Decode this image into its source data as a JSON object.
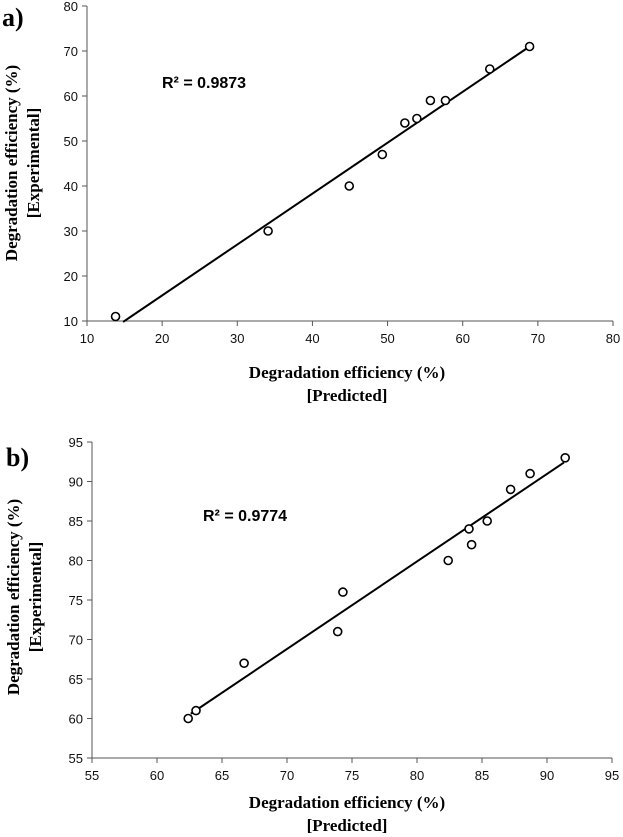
{
  "chart_data": [
    {
      "type": "scatter",
      "panel_label": "a)",
      "annotation": "R² = 0.9873",
      "xlabel": "Degradation efficiency (%)",
      "xlabel2": "[Predicted]",
      "ylabel": "Degradation efficiency (%)",
      "ylabel2": "[Experimental]",
      "xlim": [
        10,
        80
      ],
      "ylim": [
        10,
        80
      ],
      "xticks": [
        10,
        20,
        30,
        40,
        50,
        60,
        70,
        80
      ],
      "yticks": [
        10,
        20,
        30,
        40,
        50,
        60,
        70,
        80
      ],
      "points": [
        {
          "x": 13.8,
          "y": 11
        },
        {
          "x": 34.1,
          "y": 30
        },
        {
          "x": 44.9,
          "y": 40
        },
        {
          "x": 49.3,
          "y": 47
        },
        {
          "x": 52.3,
          "y": 54
        },
        {
          "x": 53.9,
          "y": 55
        },
        {
          "x": 55.7,
          "y": 59
        },
        {
          "x": 57.7,
          "y": 59
        },
        {
          "x": 63.6,
          "y": 66
        },
        {
          "x": 68.9,
          "y": 71
        }
      ],
      "trendline": [
        {
          "x": 14.8,
          "y": 9.8
        },
        {
          "x": 68.9,
          "y": 71
        }
      ],
      "grid": false
    },
    {
      "type": "scatter",
      "panel_label": "b)",
      "annotation": "R² = 0.9774",
      "xlabel": "Degradation efficiency (%)",
      "xlabel2": "[Predicted]",
      "ylabel": "Degradation efficiency (%)",
      "ylabel2": "[Experimental]",
      "xlim": [
        55,
        95
      ],
      "ylim": [
        55,
        95
      ],
      "xticks": [
        55,
        60,
        65,
        70,
        75,
        80,
        85,
        90,
        95
      ],
      "yticks": [
        55,
        60,
        65,
        70,
        75,
        80,
        85,
        90,
        95
      ],
      "points": [
        {
          "x": 62.4,
          "y": 60
        },
        {
          "x": 63.0,
          "y": 61
        },
        {
          "x": 66.7,
          "y": 67
        },
        {
          "x": 73.9,
          "y": 71
        },
        {
          "x": 74.3,
          "y": 76
        },
        {
          "x": 82.4,
          "y": 80
        },
        {
          "x": 84.0,
          "y": 84
        },
        {
          "x": 84.2,
          "y": 82
        },
        {
          "x": 85.4,
          "y": 85
        },
        {
          "x": 87.2,
          "y": 89
        },
        {
          "x": 88.7,
          "y": 91
        },
        {
          "x": 91.4,
          "y": 93
        }
      ],
      "trendline": [
        {
          "x": 62.6,
          "y": 60.6
        },
        {
          "x": 91.3,
          "y": 92.4
        }
      ],
      "grid": false
    }
  ]
}
